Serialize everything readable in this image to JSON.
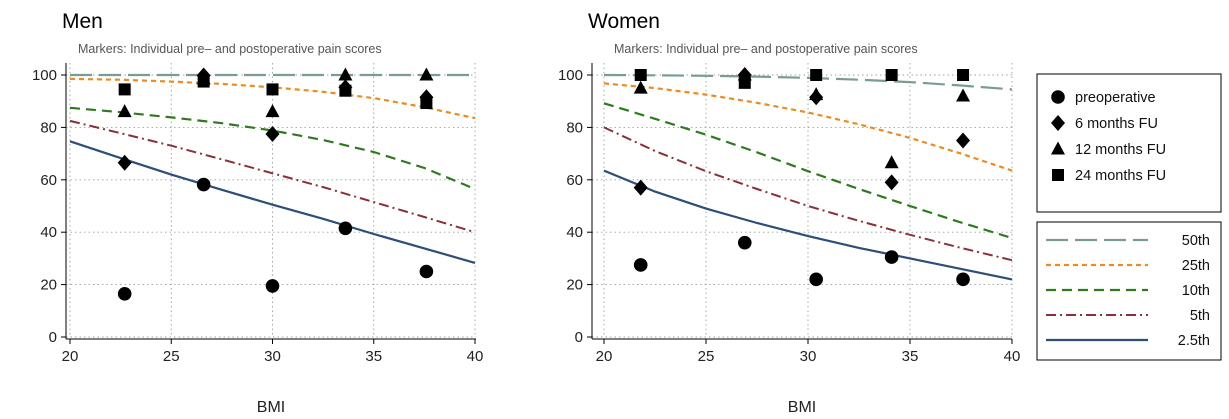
{
  "chart_data": [
    {
      "type": "line",
      "title": "Men",
      "subtitle": "Markers: Individual pre– and postoperative pain scores",
      "xlabel": "BMI",
      "ylabel": "",
      "xlim": [
        20,
        40
      ],
      "ylim": [
        0,
        100
      ],
      "xticks": [
        "20",
        "25",
        "30",
        "35",
        "40"
      ],
      "yticks": [
        "0",
        "20",
        "40",
        "60",
        "80",
        "100"
      ],
      "grid": true,
      "lines": [
        {
          "name": "50th",
          "x": [
            20,
            25,
            30,
            35,
            40
          ],
          "y": [
            100,
            100,
            100,
            100,
            100
          ]
        },
        {
          "name": "25th",
          "x": [
            20,
            22.5,
            25,
            27.5,
            30,
            32.5,
            35,
            37.5,
            40
          ],
          "y": [
            98.5,
            98.2,
            97.5,
            96.6,
            95.3,
            93.6,
            91.2,
            87.7,
            83.5
          ]
        },
        {
          "name": "10th",
          "x": [
            20,
            22.5,
            25,
            27.5,
            30,
            32.5,
            35,
            37.5,
            40
          ],
          "y": [
            87.5,
            85.8,
            83.8,
            81.6,
            78.8,
            75.2,
            70.6,
            64.5,
            56.5
          ]
        },
        {
          "name": "5th",
          "x": [
            20,
            22.5,
            25,
            27.5,
            30,
            32.5,
            35,
            37.5,
            40
          ],
          "y": [
            82.5,
            77.8,
            73,
            67.8,
            62.5,
            57.2,
            51.5,
            45.8,
            40
          ]
        },
        {
          "name": "2.5th",
          "x": [
            20,
            22.5,
            25,
            27.5,
            30,
            32.5,
            35,
            37.5,
            40
          ],
          "y": [
            74.7,
            68.3,
            62,
            56.2,
            50.5,
            45.1,
            39.3,
            33.8,
            28.3
          ]
        }
      ],
      "points": [
        {
          "name": "preoperative",
          "x": [
            22.7,
            26.6,
            30.0,
            33.6,
            37.6
          ],
          "y": [
            16.5,
            58.2,
            19.5,
            41.5,
            25.0
          ]
        },
        {
          "name": "6   months FU",
          "x": [
            22.7,
            26.6,
            30.0,
            33.6,
            37.6
          ],
          "y": [
            66.5,
            99.8,
            77.5,
            95.3,
            91.5
          ]
        },
        {
          "name": "12 months FU",
          "x": [
            22.7,
            26.6,
            30.0,
            33.6,
            37.6
          ],
          "y": [
            86.0,
            98.5,
            86.0,
            100.0,
            100.0
          ]
        },
        {
          "name": "24 months FU",
          "x": [
            22.7,
            26.6,
            30.0,
            33.6,
            37.6
          ],
          "y": [
            94.5,
            97.5,
            94.5,
            94.0,
            89.3
          ]
        }
      ]
    },
    {
      "type": "line",
      "title": "Women",
      "subtitle": "Markers: Individual pre– and postoperative pain scores",
      "xlabel": "BMI",
      "ylabel": "",
      "xlim": [
        20,
        40
      ],
      "ylim": [
        0,
        100
      ],
      "xticks": [
        "20",
        "25",
        "30",
        "35",
        "40"
      ],
      "yticks": [
        "0",
        "20",
        "40",
        "60",
        "80",
        "100"
      ],
      "grid": true,
      "lines": [
        {
          "name": "50th",
          "x": [
            20,
            22.5,
            25,
            27.5,
            30,
            32.5,
            35,
            37.5,
            40
          ],
          "y": [
            100,
            99.9,
            99.7,
            99.4,
            98.9,
            98.2,
            97.3,
            96.0,
            94.5
          ]
        },
        {
          "name": "25th",
          "x": [
            20,
            22.5,
            25,
            27.5,
            30,
            32.5,
            35,
            37.5,
            40
          ],
          "y": [
            96.8,
            95.0,
            92.5,
            89.4,
            85.7,
            81.2,
            76.0,
            70.0,
            63.5
          ]
        },
        {
          "name": "10th",
          "x": [
            20,
            22.5,
            25,
            27.5,
            30,
            32.5,
            35,
            37.5,
            40
          ],
          "y": [
            89.2,
            83.3,
            77.2,
            70.5,
            63.3,
            56.5,
            50.0,
            43.7,
            37.8
          ]
        },
        {
          "name": "5th",
          "x": [
            20,
            22.5,
            25,
            27.5,
            30,
            32.5,
            35,
            37.5,
            40
          ],
          "y": [
            80.0,
            71.0,
            63.3,
            56.5,
            50.0,
            44.3,
            39.0,
            34.0,
            29.3
          ]
        },
        {
          "name": "2.5th",
          "x": [
            20,
            22.5,
            25,
            27.5,
            30,
            32.5,
            35,
            37.5,
            40
          ],
          "y": [
            63.5,
            55.5,
            49.0,
            43.5,
            38.5,
            34.0,
            30.0,
            26.0,
            22.0
          ]
        }
      ],
      "points": [
        {
          "name": "preoperative",
          "x": [
            21.8,
            26.9,
            30.4,
            34.1,
            37.6
          ],
          "y": [
            27.5,
            36.0,
            22.0,
            30.5,
            22.0
          ]
        },
        {
          "name": "6   months FU",
          "x": [
            21.8,
            26.9,
            30.4,
            34.1,
            37.6
          ],
          "y": [
            57.0,
            100.0,
            91.5,
            59.0,
            75.0
          ]
        },
        {
          "name": "12 months FU",
          "x": [
            21.8,
            26.9,
            30.4,
            34.1,
            37.6
          ],
          "y": [
            95.0,
            100.0,
            92.5,
            66.5,
            92.0
          ]
        },
        {
          "name": "24 months FU",
          "x": [
            21.8,
            26.9,
            30.4,
            34.1,
            37.6
          ],
          "y": [
            100.0,
            97.0,
            100.0,
            100.0,
            100.0
          ]
        }
      ]
    }
  ],
  "legend": {
    "markers": [
      {
        "label": "preoperative",
        "icon": "circle-marker-icon"
      },
      {
        "label": "6   months FU",
        "icon": "diamond-marker-icon"
      },
      {
        "label": "12 months FU",
        "icon": "triangle-marker-icon"
      },
      {
        "label": "24 months FU",
        "icon": "square-marker-icon"
      }
    ],
    "lines": [
      {
        "label": "50th",
        "color": "#7a9c94",
        "dash": "long-dash"
      },
      {
        "label": "25th",
        "color": "#f08a1c",
        "dash": "short-dash"
      },
      {
        "label": "10th",
        "color": "#2e7a1e",
        "dash": "dash"
      },
      {
        "label": "5th",
        "color": "#8b2f39",
        "dash": "dash-dot"
      },
      {
        "label": "2.5th",
        "color": "#2e4e7a",
        "dash": "solid"
      }
    ]
  }
}
